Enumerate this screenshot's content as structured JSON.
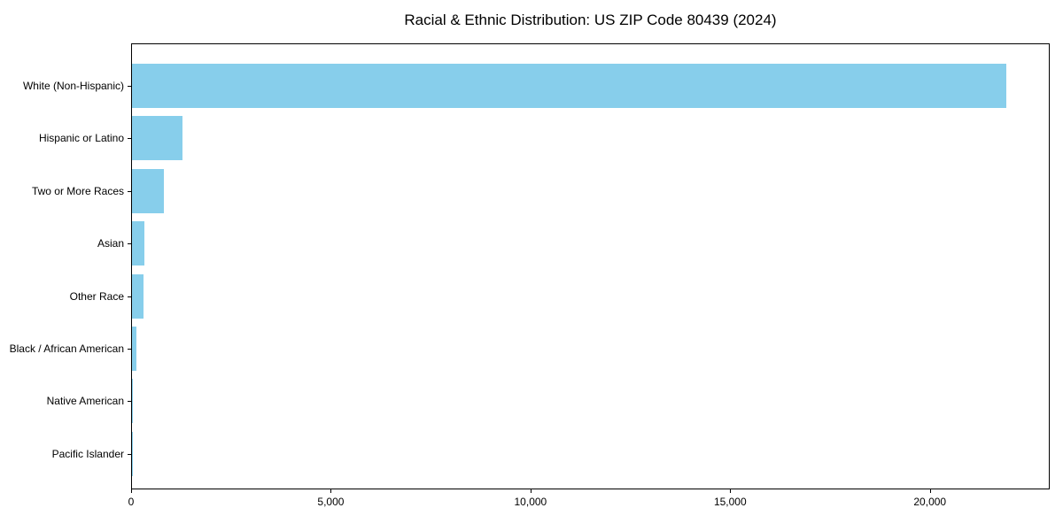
{
  "chart_data": {
    "type": "bar",
    "orientation": "horizontal",
    "title": "Racial & Ethnic Distribution: US ZIP Code 80439 (2024)",
    "categories": [
      "White (Non-Hispanic)",
      "Hispanic or Latino",
      "Two or More Races",
      "Asian",
      "Other Race",
      "Black / African American",
      "Native American",
      "Pacific Islander"
    ],
    "values": [
      21900,
      1260,
      790,
      300,
      280,
      110,
      30,
      10
    ],
    "bar_color": "#87CEEB",
    "axis_color": "#000000",
    "text_color": "#000000",
    "xlabel": "",
    "ylabel": "",
    "xlim": [
      0,
      23000
    ],
    "x_ticks": [
      0,
      5000,
      10000,
      15000,
      20000
    ],
    "x_tick_labels": [
      "0",
      "5,000",
      "10,000",
      "15,000",
      "20,000"
    ],
    "grid": false,
    "legend": null,
    "first_category_position": "top"
  }
}
